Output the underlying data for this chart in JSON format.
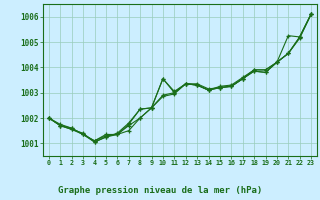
{
  "title": "Graphe pression niveau de la mer (hPa)",
  "background_color": "#cceeff",
  "grid_color": "#aaddcc",
  "line_color": "#1a6e1a",
  "xlim": [
    -0.5,
    23.5
  ],
  "ylim": [
    1000.5,
    1006.5
  ],
  "yticks": [
    1001,
    1002,
    1003,
    1004,
    1005,
    1006
  ],
  "xticks": [
    0,
    1,
    2,
    3,
    4,
    5,
    6,
    7,
    8,
    9,
    10,
    11,
    12,
    13,
    14,
    15,
    16,
    17,
    18,
    19,
    20,
    21,
    22,
    23
  ],
  "lines": [
    {
      "x": [
        0,
        1,
        2,
        3,
        4,
        5,
        6,
        7,
        8,
        9,
        10,
        11,
        12,
        13,
        14,
        15,
        16,
        17,
        18,
        19,
        20,
        21,
        22,
        23
      ],
      "y": [
        1002.0,
        1001.7,
        1001.6,
        1001.35,
        1001.1,
        1001.35,
        1001.35,
        1001.5,
        1002.0,
        1002.4,
        1003.55,
        1003.0,
        1003.35,
        1003.3,
        1003.1,
        1003.2,
        1003.25,
        1003.55,
        1003.9,
        1003.9,
        1004.2,
        1004.55,
        1005.2,
        1006.1
      ]
    },
    {
      "x": [
        0,
        1,
        2,
        3,
        4,
        5,
        6,
        7,
        8,
        9,
        10,
        11,
        12,
        13,
        14,
        15,
        16,
        17,
        18,
        19,
        20,
        21,
        22,
        23
      ],
      "y": [
        1002.0,
        1001.7,
        1001.55,
        1001.4,
        1001.05,
        1001.25,
        1001.4,
        1001.8,
        1002.35,
        1002.4,
        1002.9,
        1003.0,
        1003.35,
        1003.35,
        1003.15,
        1003.2,
        1003.25,
        1003.55,
        1003.85,
        1003.8,
        1004.2,
        1005.25,
        1005.2,
        1006.1
      ]
    },
    {
      "x": [
        0,
        1,
        2,
        3,
        4,
        5,
        6,
        7,
        8,
        9,
        10,
        11,
        12,
        13,
        14,
        15,
        16,
        17,
        18,
        19,
        20,
        21,
        22,
        23
      ],
      "y": [
        1002.0,
        1001.75,
        1001.6,
        1001.35,
        1001.1,
        1001.3,
        1001.35,
        1001.7,
        1002.0,
        1002.4,
        1003.55,
        1003.05,
        1003.35,
        1003.3,
        1003.1,
        1003.25,
        1003.3,
        1003.6,
        1003.9,
        1003.9,
        1004.2,
        1004.55,
        1005.2,
        1006.1
      ]
    },
    {
      "x": [
        0,
        1,
        2,
        3,
        4,
        5,
        6,
        7,
        8,
        9,
        10,
        11,
        12,
        13,
        14,
        15,
        16,
        17,
        18,
        19,
        20,
        21,
        22,
        23
      ],
      "y": [
        1002.0,
        1001.7,
        1001.55,
        1001.35,
        1001.05,
        1001.25,
        1001.35,
        1001.75,
        1002.35,
        1002.4,
        1002.85,
        1002.95,
        1003.35,
        1003.3,
        1003.1,
        1003.2,
        1003.25,
        1003.55,
        1003.85,
        1003.8,
        1004.2,
        1004.55,
        1005.15,
        1006.1
      ]
    }
  ],
  "bottom_label_color": "#1a6e1a",
  "bottom_bg_color": "#a8d8a8"
}
